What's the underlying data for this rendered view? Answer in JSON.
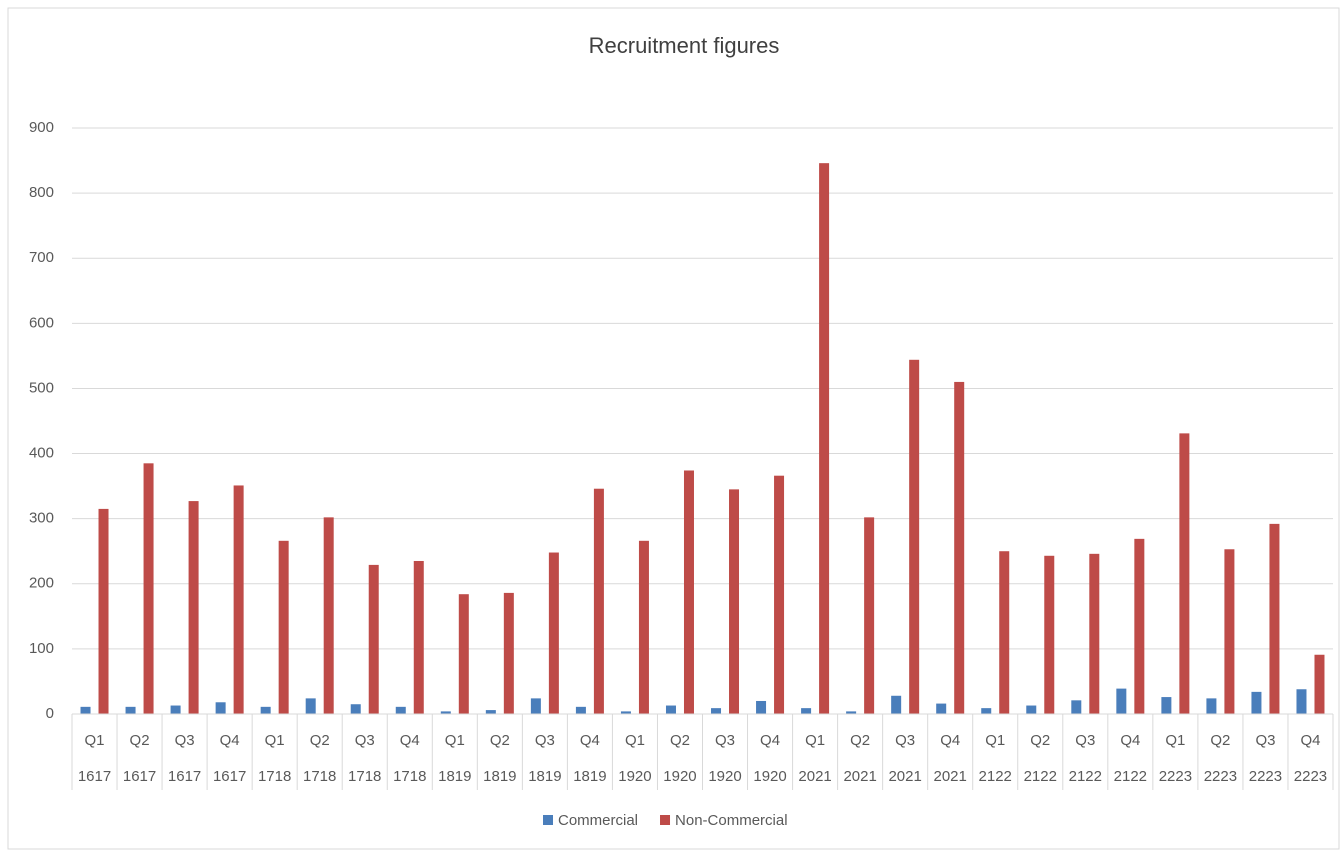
{
  "chart_data": {
    "type": "bar",
    "title": "Recruitment figures",
    "categories": [
      "Q1",
      "Q2",
      "Q3",
      "Q4",
      "Q1",
      "Q2",
      "Q3",
      "Q4",
      "Q1",
      "Q2",
      "Q3",
      "Q4",
      "Q1",
      "Q2",
      "Q3",
      "Q4",
      "Q1",
      "Q2",
      "Q3",
      "Q4",
      "Q1",
      "Q2",
      "Q3",
      "Q4",
      "Q1",
      "Q2",
      "Q3",
      "Q4"
    ],
    "category_groups": [
      "1617",
      "1617",
      "1617",
      "1617",
      "1718",
      "1718",
      "1718",
      "1718",
      "1819",
      "1819",
      "1819",
      "1819",
      "1920",
      "1920",
      "1920",
      "1920",
      "2021",
      "2021",
      "2021",
      "2021",
      "2122",
      "2122",
      "2122",
      "2122",
      "2223",
      "2223",
      "2223",
      "2223"
    ],
    "series": [
      {
        "name": "Commercial",
        "color": "#4a7ebb",
        "values": [
          11,
          11,
          13,
          18,
          11,
          24,
          15,
          11,
          4,
          6,
          24,
          11,
          4,
          13,
          9,
          20,
          9,
          4,
          28,
          16,
          9,
          13,
          21,
          39,
          26,
          24,
          34,
          38
        ]
      },
      {
        "name": "Non-Commercial",
        "color": "#be4b48",
        "values": [
          315,
          385,
          327,
          351,
          266,
          302,
          229,
          235,
          184,
          186,
          248,
          346,
          266,
          374,
          345,
          366,
          846,
          302,
          544,
          510,
          250,
          243,
          246,
          269,
          431,
          253,
          292,
          91
        ]
      }
    ],
    "ylim": [
      0,
      900
    ],
    "yticks": [
      0,
      100,
      200,
      300,
      400,
      500,
      600,
      700,
      800,
      900
    ],
    "grid": true,
    "legend": "bottom"
  }
}
